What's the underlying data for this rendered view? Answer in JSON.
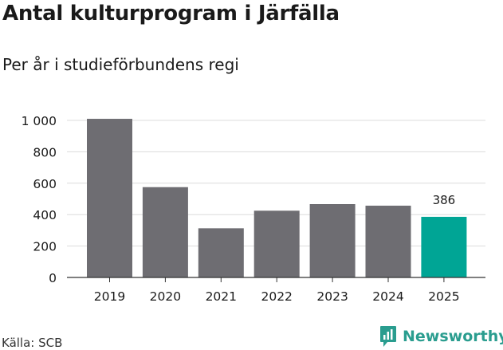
{
  "header": {
    "title": "Antal kulturprogram i Järfälla",
    "subtitle": "Per år i studieförbundens regi"
  },
  "footer": {
    "source": "Källa: SCB",
    "brand": "Newsworthy"
  },
  "colors": {
    "bar": "#6e6d72",
    "highlight": "#00a595",
    "grid": "#dcdcdc",
    "axis": "#333333",
    "brand": "#2a9d8f"
  },
  "chart_data": {
    "type": "bar",
    "categories": [
      "2019",
      "2020",
      "2021",
      "2022",
      "2023",
      "2024",
      "2025"
    ],
    "values": [
      1010,
      575,
      313,
      425,
      467,
      457,
      386
    ],
    "highlight_index": 6,
    "data_labels": [
      null,
      null,
      null,
      null,
      null,
      null,
      "386"
    ],
    "yticks": [
      0,
      200,
      400,
      600,
      800,
      1000
    ],
    "ytick_labels": [
      "0",
      "200",
      "400",
      "600",
      "800",
      "1 000"
    ],
    "ylim": [
      0,
      1000
    ],
    "grid": true,
    "legend": "none"
  }
}
